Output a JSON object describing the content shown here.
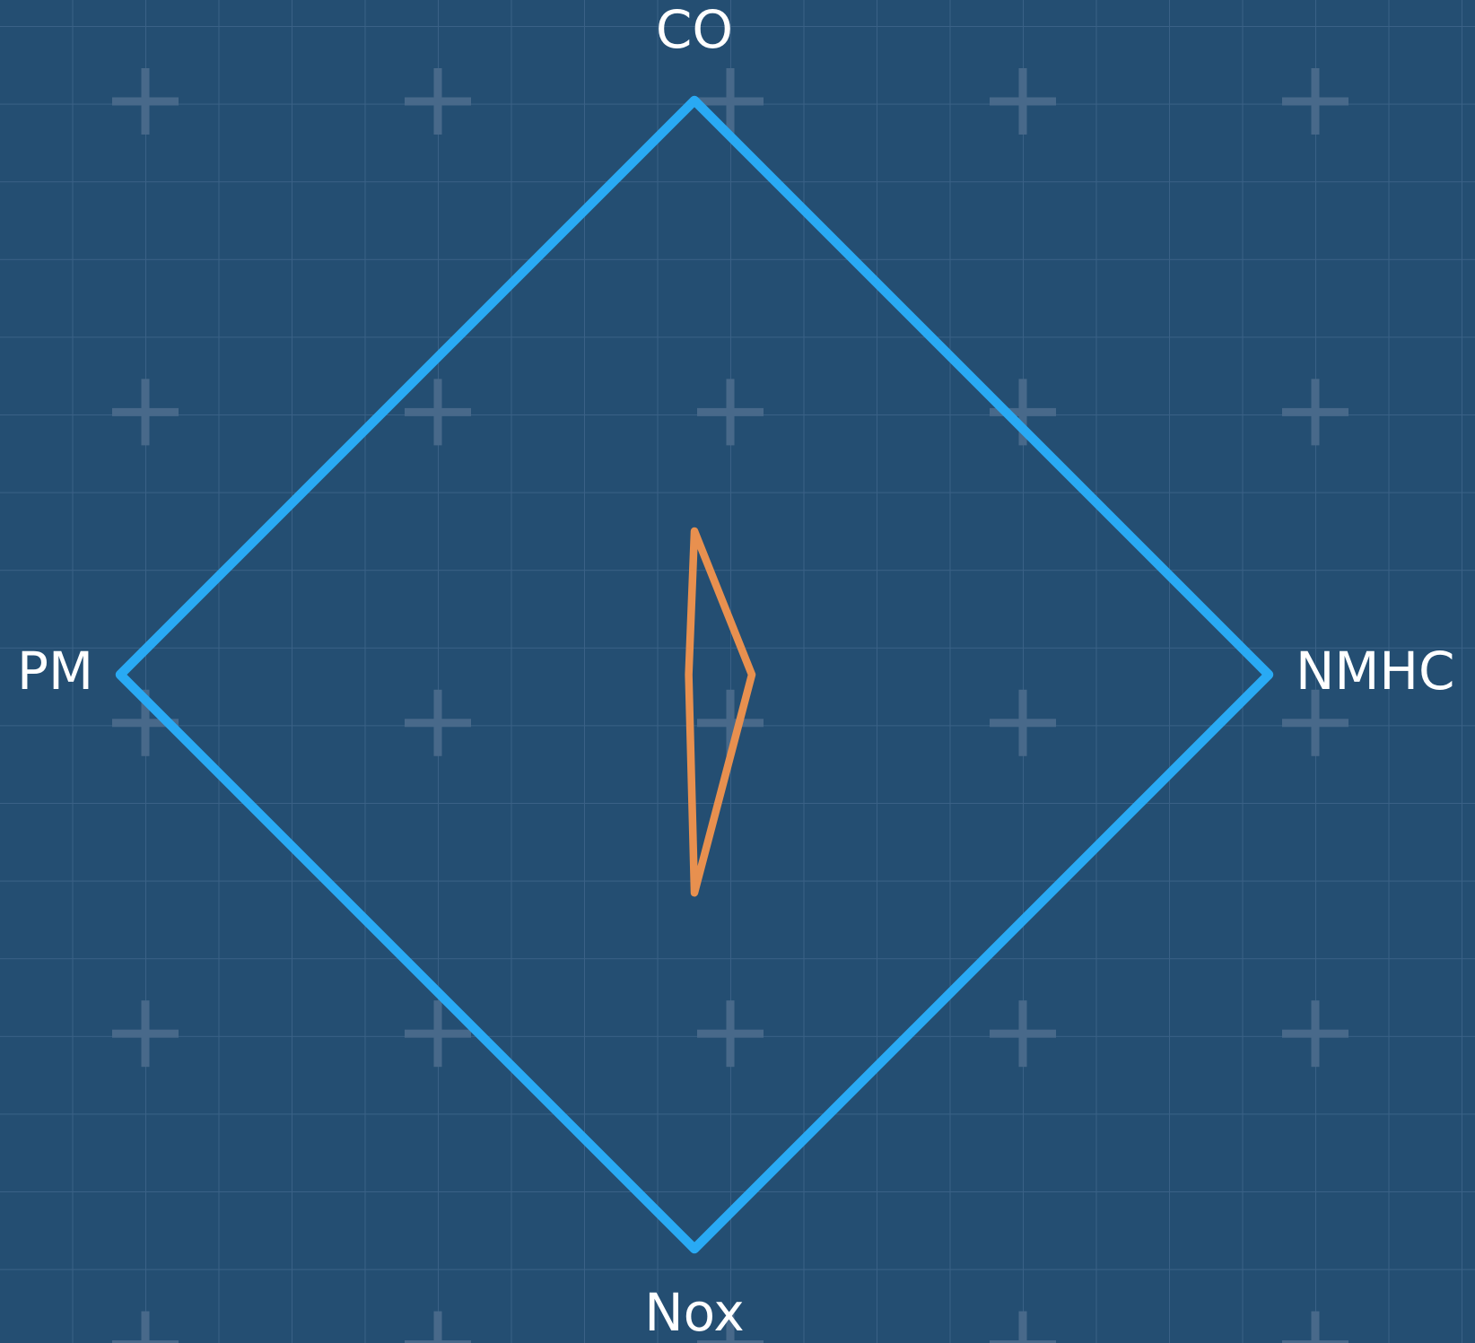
{
  "chart_data": {
    "type": "radar",
    "categories": [
      "CO",
      "NMHC",
      "Nox",
      "PM"
    ],
    "rlim": [
      0,
      1
    ],
    "series": [
      {
        "color": "#29aaf4",
        "values": [
          1,
          1,
          1,
          1
        ]
      },
      {
        "color": "#e8904f",
        "values": [
          0.25,
          0.1,
          0.38,
          0.01
        ]
      }
    ]
  }
}
